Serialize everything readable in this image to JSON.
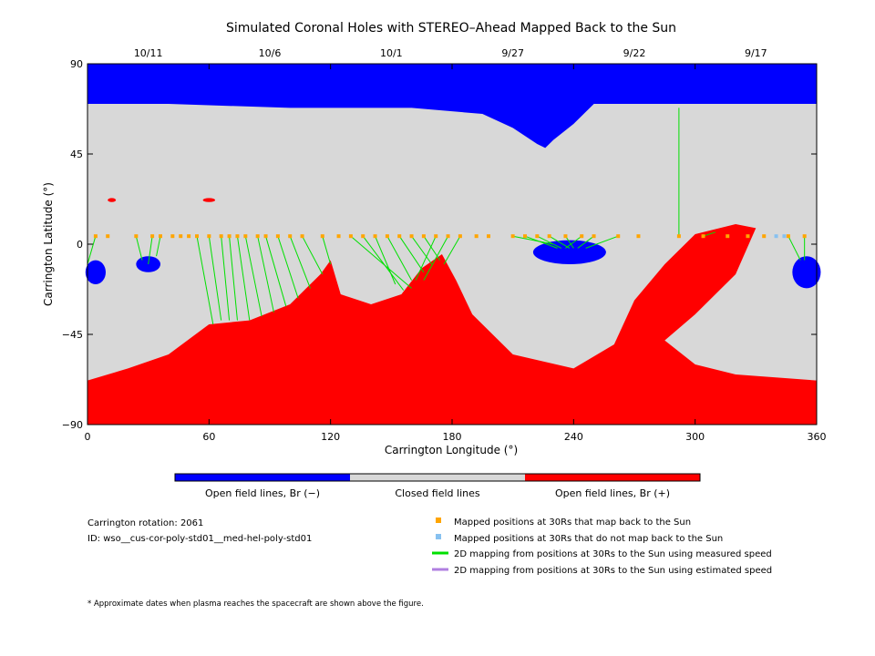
{
  "chart_data": {
    "type": "map",
    "title": "Simulated Coronal Holes with STEREO–Ahead Mapped Back to the Sun",
    "xlabel": "Carrington Longitude (°)",
    "ylabel": "Carrington Latitude (°)",
    "xlim": [
      0,
      360
    ],
    "ylim": [
      -90,
      90
    ],
    "x_ticks": [
      0,
      60,
      120,
      180,
      240,
      300,
      360
    ],
    "y_ticks": [
      -90,
      -45,
      0,
      45,
      90
    ],
    "date_ticks": [
      {
        "label": "10/11",
        "lon": 30
      },
      {
        "label": "10/6",
        "lon": 90
      },
      {
        "label": "10/1",
        "lon": 150
      },
      {
        "label": "9/27",
        "lon": 210
      },
      {
        "label": "9/22",
        "lon": 270
      },
      {
        "label": "9/17",
        "lon": 330
      }
    ],
    "colors": {
      "open_negative": "#0000ff",
      "closed": "#d8d8d8",
      "open_positive": "#ff0000",
      "mapped": "#ffa500",
      "unmapped": "#87c1f0",
      "measured_line": "#00e000",
      "estimated_line": "#b07fe0"
    },
    "region_polygons": {
      "north_cap": [
        [
          0,
          90
        ],
        [
          360,
          90
        ],
        [
          360,
          70
        ],
        [
          300,
          70
        ],
        [
          250,
          70
        ],
        [
          240,
          60
        ],
        [
          230,
          52
        ],
        [
          226,
          48
        ],
        [
          222,
          50
        ],
        [
          210,
          58
        ],
        [
          195,
          65
        ],
        [
          160,
          68
        ],
        [
          100,
          68
        ],
        [
          40,
          70
        ],
        [
          0,
          70
        ]
      ],
      "positive_band": [
        [
          0,
          -90
        ],
        [
          360,
          -90
        ],
        [
          360,
          -68
        ],
        [
          320,
          -65
        ],
        [
          300,
          -60
        ],
        [
          285,
          -48
        ],
        [
          300,
          -35
        ],
        [
          320,
          -15
        ],
        [
          330,
          8
        ],
        [
          320,
          10
        ],
        [
          300,
          5
        ],
        [
          285,
          -10
        ],
        [
          270,
          -28
        ],
        [
          260,
          -50
        ],
        [
          240,
          -62
        ],
        [
          210,
          -55
        ],
        [
          190,
          -35
        ],
        [
          182,
          -18
        ],
        [
          175,
          -5
        ],
        [
          165,
          -12
        ],
        [
          155,
          -25
        ],
        [
          140,
          -30
        ],
        [
          125,
          -25
        ],
        [
          120,
          -8
        ],
        [
          115,
          -15
        ],
        [
          100,
          -30
        ],
        [
          80,
          -38
        ],
        [
          60,
          -40
        ],
        [
          40,
          -55
        ],
        [
          20,
          -62
        ],
        [
          0,
          -68
        ]
      ]
    },
    "blobs": [
      {
        "lon": 4,
        "lat": -14,
        "rx": 5,
        "ry": 6,
        "kind": "negative"
      },
      {
        "lon": 30,
        "lat": -10,
        "rx": 6,
        "ry": 4,
        "kind": "negative"
      },
      {
        "lon": 238,
        "lat": -4,
        "rx": 18,
        "ry": 6,
        "kind": "negative"
      },
      {
        "lon": 355,
        "lat": -14,
        "rx": 7,
        "ry": 8,
        "kind": "negative"
      },
      {
        "lon": 12,
        "lat": 22,
        "rx": 2,
        "ry": 1,
        "kind": "positive"
      },
      {
        "lon": 60,
        "lat": 22,
        "rx": 3,
        "ry": 1,
        "kind": "positive"
      }
    ],
    "mapped_points": [
      {
        "lon": 4,
        "lat": 4,
        "foot": [
          0,
          -10
        ]
      },
      {
        "lon": 10,
        "lat": 4
      },
      {
        "lon": 24,
        "lat": 4,
        "foot": [
          27,
          -8
        ]
      },
      {
        "lon": 32,
        "lat": 4,
        "foot": [
          30,
          -10
        ]
      },
      {
        "lon": 36,
        "lat": 4,
        "foot": [
          34,
          -6
        ]
      },
      {
        "lon": 42,
        "lat": 4
      },
      {
        "lon": 46,
        "lat": 4
      },
      {
        "lon": 50,
        "lat": 4
      },
      {
        "lon": 54,
        "lat": 4,
        "foot": [
          62,
          -40
        ]
      },
      {
        "lon": 60,
        "lat": 4,
        "foot": [
          66,
          -38
        ]
      },
      {
        "lon": 66,
        "lat": 4,
        "foot": [
          70,
          -38
        ]
      },
      {
        "lon": 70,
        "lat": 4,
        "foot": [
          74,
          -38
        ]
      },
      {
        "lon": 74,
        "lat": 4,
        "foot": [
          80,
          -38
        ]
      },
      {
        "lon": 78,
        "lat": 4,
        "foot": [
          86,
          -36
        ]
      },
      {
        "lon": 84,
        "lat": 4,
        "foot": [
          92,
          -34
        ]
      },
      {
        "lon": 88,
        "lat": 4,
        "foot": [
          98,
          -31
        ]
      },
      {
        "lon": 94,
        "lat": 4,
        "foot": [
          104,
          -27
        ]
      },
      {
        "lon": 100,
        "lat": 4,
        "foot": [
          110,
          -22
        ]
      },
      {
        "lon": 106,
        "lat": 4,
        "foot": [
          116,
          -15
        ]
      },
      {
        "lon": 116,
        "lat": 4,
        "foot": [
          120,
          -10
        ]
      },
      {
        "lon": 124,
        "lat": 4
      },
      {
        "lon": 130,
        "lat": 4,
        "foot": [
          160,
          -22
        ]
      },
      {
        "lon": 136,
        "lat": 4,
        "foot": [
          156,
          -23
        ]
      },
      {
        "lon": 142,
        "lat": 4,
        "foot": [
          152,
          -20
        ]
      },
      {
        "lon": 148,
        "lat": 4,
        "foot": [
          160,
          -18
        ]
      },
      {
        "lon": 154,
        "lat": 4,
        "foot": [
          166,
          -14
        ]
      },
      {
        "lon": 160,
        "lat": 4,
        "foot": [
          170,
          -10
        ]
      },
      {
        "lon": 166,
        "lat": 4,
        "foot": [
          174,
          -8
        ]
      },
      {
        "lon": 172,
        "lat": 4,
        "foot": [
          162,
          -18
        ]
      },
      {
        "lon": 178,
        "lat": 4,
        "foot": [
          166,
          -18
        ]
      },
      {
        "lon": 184,
        "lat": 4,
        "foot": [
          176,
          -10
        ]
      },
      {
        "lon": 192,
        "lat": 4
      },
      {
        "lon": 198,
        "lat": 4
      },
      {
        "lon": 210,
        "lat": 4,
        "foot": [
          230,
          0
        ]
      },
      {
        "lon": 216,
        "lat": 4,
        "foot": [
          232,
          -2
        ]
      },
      {
        "lon": 222,
        "lat": 4,
        "foot": [
          234,
          -2
        ]
      },
      {
        "lon": 228,
        "lat": 4,
        "foot": [
          238,
          -2
        ]
      },
      {
        "lon": 236,
        "lat": 4,
        "foot": [
          240,
          -2
        ]
      },
      {
        "lon": 244,
        "lat": 4,
        "foot": [
          236,
          -2
        ]
      },
      {
        "lon": 250,
        "lat": 4,
        "foot": [
          242,
          -2
        ]
      },
      {
        "lon": 262,
        "lat": 4,
        "foot": [
          246,
          -2
        ]
      },
      {
        "lon": 272,
        "lat": 4
      },
      {
        "lon": 292,
        "lat": 4,
        "foot": [
          292,
          68
        ]
      },
      {
        "lon": 304,
        "lat": 4,
        "foot": [
          310,
          6
        ]
      },
      {
        "lon": 316,
        "lat": 4
      },
      {
        "lon": 326,
        "lat": 4
      },
      {
        "lon": 334,
        "lat": 4
      },
      {
        "lon": 346,
        "lat": 4,
        "foot": [
          352,
          -8
        ]
      },
      {
        "lon": 354,
        "lat": 4,
        "foot": [
          354,
          -8
        ]
      }
    ],
    "unmapped_points": [
      {
        "lon": 340,
        "lat": 4
      },
      {
        "lon": 344,
        "lat": 4
      }
    ]
  },
  "legend_bar": {
    "open_negative": "Open field lines, Br (−)",
    "closed": "Closed field lines",
    "open_positive": "Open field lines, Br (+)"
  },
  "info": {
    "rotation": "Carrington rotation: 2061",
    "id": "ID: wso__cus-cor-poly-std01__med-hel-poly-std01"
  },
  "legend": {
    "mapped": "Mapped positions at 30Rs that map back to the Sun",
    "unmapped": "Mapped positions at 30Rs that do not map back to the Sun",
    "measured": "2D mapping from positions at 30Rs to the Sun using measured speed",
    "estimated": "2D mapping from positions at 30Rs to the Sun using estimated speed"
  },
  "footnote": "* Approximate dates when plasma reaches the spacecraft are shown above the figure."
}
